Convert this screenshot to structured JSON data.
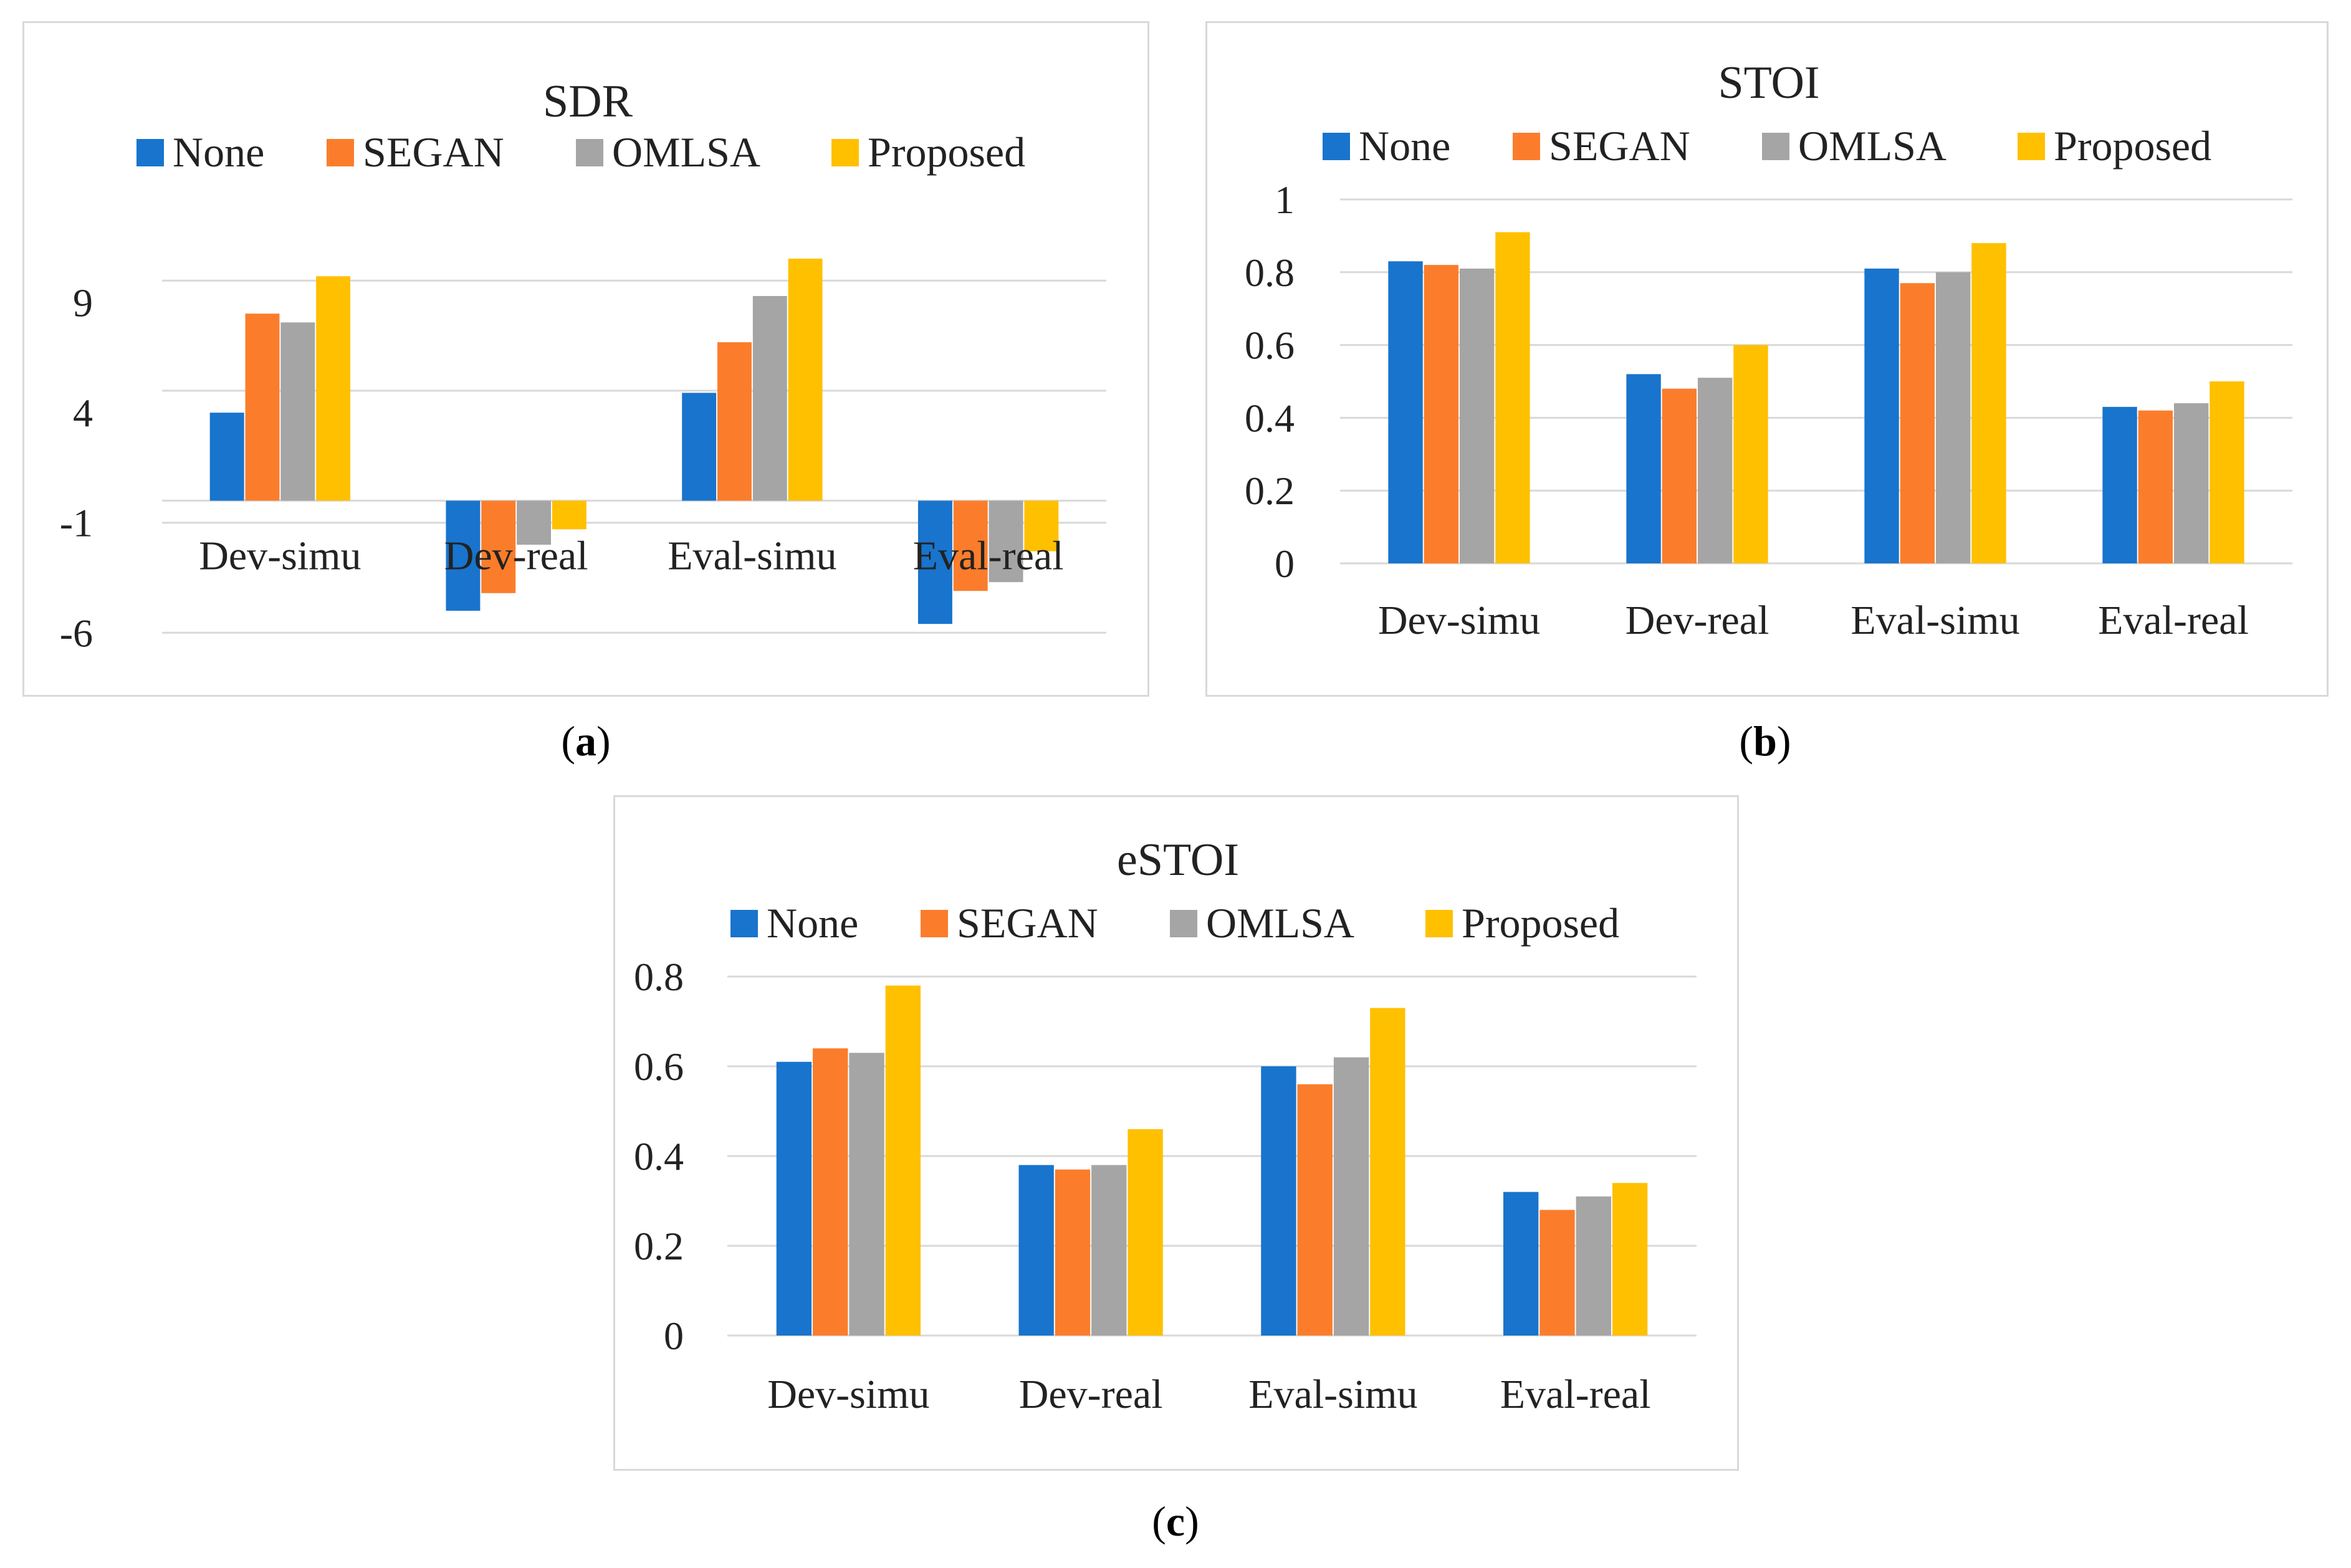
{
  "colors": {
    "None": "#1874cd",
    "SEGAN": "#fb7d2b",
    "OMLSA": "#a5a5a5",
    "Proposed": "#ffc000"
  },
  "captions": {
    "a_open": "(",
    "a_letter": "a",
    "a_close": ")",
    "b_open": "(",
    "b_letter": "b",
    "b_close": ")",
    "c_open": "(",
    "c_letter": "c",
    "c_close": ")"
  },
  "chart_data": [
    {
      "id": "a",
      "type": "bar",
      "title": "SDR",
      "categories": [
        "Dev-simu",
        "Dev-real",
        "Eval-simu",
        "Eval-real"
      ],
      "series": [
        {
          "name": "None",
          "values": [
            4.0,
            -5.0,
            4.9,
            -5.6
          ]
        },
        {
          "name": "SEGAN",
          "values": [
            8.5,
            -4.2,
            7.2,
            -4.1
          ]
        },
        {
          "name": "OMLSA",
          "values": [
            8.1,
            -2.0,
            9.3,
            -3.7
          ]
        },
        {
          "name": "Proposed",
          "values": [
            10.2,
            -1.3,
            11.0,
            -2.3
          ]
        }
      ],
      "yticks": [
        9,
        4,
        -1,
        -6
      ],
      "ytick_labels": [
        "9",
        "4",
        "-1",
        "-6"
      ],
      "ylim": [
        -6.7,
        12.5
      ],
      "gridlines": [
        10.0,
        5.0,
        0.0,
        -1.0,
        -6.0
      ],
      "category_label_y": -2.5,
      "legend": "top"
    },
    {
      "id": "b",
      "type": "bar",
      "title": "STOI",
      "categories": [
        "Dev-simu",
        "Dev-real",
        "Eval-simu",
        "Eval-real"
      ],
      "series": [
        {
          "name": "None",
          "values": [
            0.83,
            0.52,
            0.81,
            0.43
          ]
        },
        {
          "name": "SEGAN",
          "values": [
            0.82,
            0.48,
            0.77,
            0.42
          ]
        },
        {
          "name": "OMLSA",
          "values": [
            0.81,
            0.51,
            0.8,
            0.44
          ]
        },
        {
          "name": "Proposed",
          "values": [
            0.91,
            0.6,
            0.88,
            0.5
          ]
        }
      ],
      "yticks": [
        0,
        0.2,
        0.4,
        0.6,
        0.8,
        1
      ],
      "ytick_labels": [
        "0",
        "0.2",
        "0.4",
        "0.6",
        "0.8",
        "1"
      ],
      "ylim": [
        0,
        1
      ],
      "gridlines": [
        0,
        0.2,
        0.4,
        0.6,
        0.8,
        1.0
      ],
      "legend": "top"
    },
    {
      "id": "c",
      "type": "bar",
      "title": "eSTOI",
      "categories": [
        "Dev-simu",
        "Dev-real",
        "Eval-simu",
        "Eval-real"
      ],
      "series": [
        {
          "name": "None",
          "values": [
            0.61,
            0.38,
            0.6,
            0.32
          ]
        },
        {
          "name": "SEGAN",
          "values": [
            0.64,
            0.37,
            0.56,
            0.28
          ]
        },
        {
          "name": "OMLSA",
          "values": [
            0.63,
            0.38,
            0.62,
            0.31
          ]
        },
        {
          "name": "Proposed",
          "values": [
            0.78,
            0.46,
            0.73,
            0.34
          ]
        }
      ],
      "yticks": [
        0,
        0.2,
        0.4,
        0.6,
        0.8
      ],
      "ytick_labels": [
        "0",
        "0.2",
        "0.4",
        "0.6",
        "0.8"
      ],
      "ylim": [
        0,
        0.8
      ],
      "gridlines": [
        0,
        0.2,
        0.4,
        0.6,
        0.8
      ],
      "legend": "top"
    }
  ]
}
